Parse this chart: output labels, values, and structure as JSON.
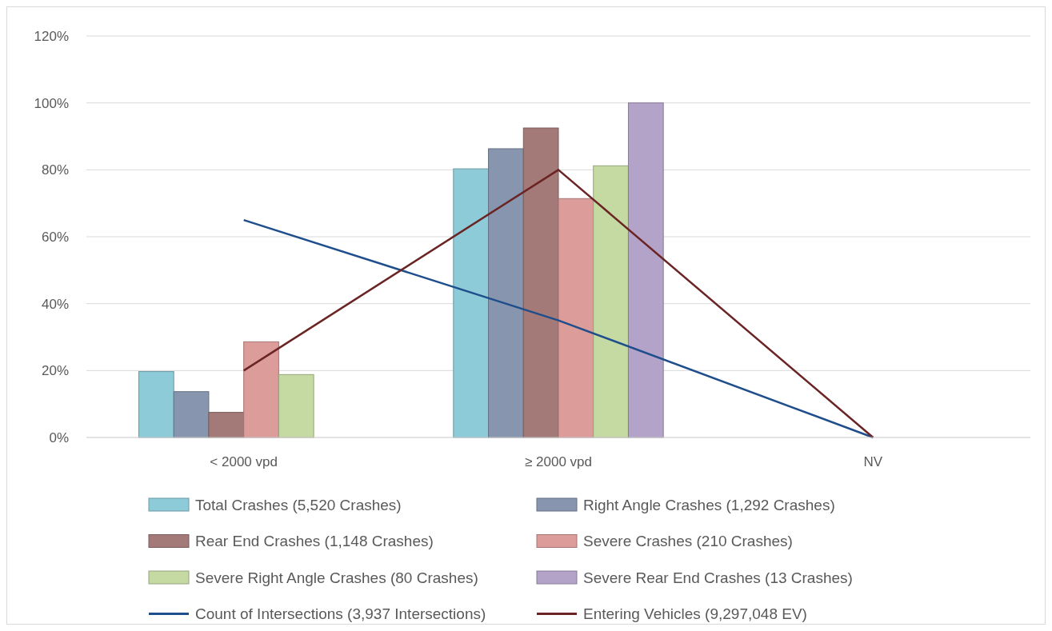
{
  "chart_data": {
    "type": "bar",
    "categories": [
      "< 2000 vpd",
      "≥ 2000 vpd",
      "NV"
    ],
    "series": [
      {
        "name": "Total Crashes (5,520 Crashes)",
        "color": "#8ecbd9",
        "values": [
          19.7,
          80.3,
          0
        ]
      },
      {
        "name": "Right Angle Crashes (1,292 Crashes)",
        "color": "#8796ae",
        "values": [
          13.7,
          86.3,
          0
        ]
      },
      {
        "name": "Rear End Crashes (1,148 Crashes)",
        "color": "#a47a78",
        "values": [
          7.5,
          92.5,
          0
        ]
      },
      {
        "name": "Severe Crashes (210 Crashes)",
        "color": "#dc9c9a",
        "values": [
          28.6,
          71.4,
          0
        ]
      },
      {
        "name": "Severe Right Angle Crashes (80 Crashes)",
        "color": "#c5daa2",
        "values": [
          18.8,
          81.2,
          0
        ]
      },
      {
        "name": "Severe Rear End Crashes (13 Crashes)",
        "color": "#b3a3c8",
        "values": [
          0,
          100,
          0
        ]
      },
      {
        "name": "Count of Intersections (3,937 Intersections)",
        "type": "line",
        "color": "#1f4e8c",
        "values": [
          65,
          35,
          0
        ]
      },
      {
        "name": "Entering Vehicles (9,297,048 EV)",
        "type": "line",
        "color": "#6b2424",
        "values": [
          20,
          80,
          0
        ]
      }
    ],
    "ylim": [
      0,
      120
    ],
    "yticks": [
      {
        "value": 0,
        "label": "0%"
      },
      {
        "value": 20,
        "label": "20%"
      },
      {
        "value": 40,
        "label": "40%"
      },
      {
        "value": 60,
        "label": "60%"
      },
      {
        "value": 80,
        "label": "80%"
      },
      {
        "value": 100,
        "label": "100%"
      },
      {
        "value": 120,
        "label": "120%"
      }
    ],
    "grid": "y",
    "legend": "bottom"
  }
}
